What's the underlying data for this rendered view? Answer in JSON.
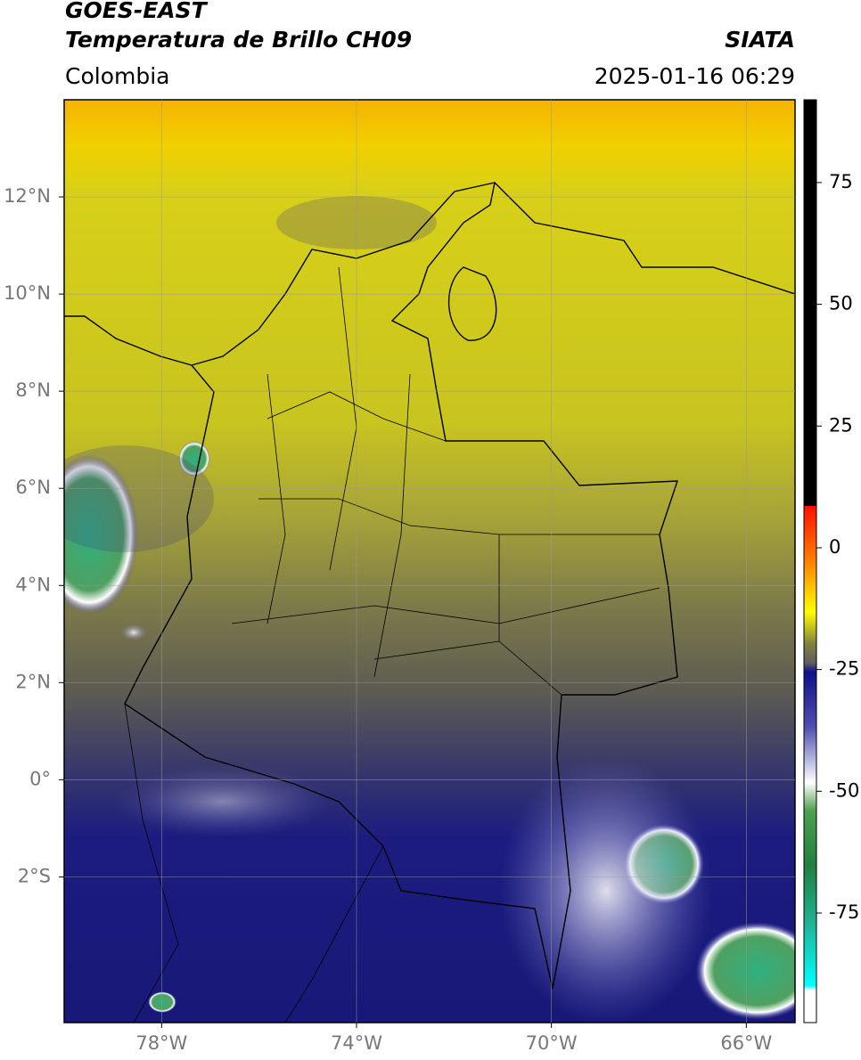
{
  "header": {
    "title": "GOES-EAST",
    "subtitle": "Temperatura de Brillo CH09",
    "source": "SIATA",
    "region": "Colombia",
    "timestamp": "2025-01-16 06:29"
  },
  "map": {
    "xlim": [
      -80,
      -65
    ],
    "ylim": [
      -5,
      14
    ],
    "grid": true,
    "xticks": [
      {
        "value": -78,
        "label": "78°W"
      },
      {
        "value": -74,
        "label": "74°W"
      },
      {
        "value": -70,
        "label": "70°W"
      },
      {
        "value": -66,
        "label": "66°W"
      }
    ],
    "yticks": [
      {
        "value": 12,
        "label": "12°N"
      },
      {
        "value": 10,
        "label": "10°N"
      },
      {
        "value": 8,
        "label": "8°N"
      },
      {
        "value": 6,
        "label": "6°N"
      },
      {
        "value": 4,
        "label": "4°N"
      },
      {
        "value": 2,
        "label": "2°N"
      },
      {
        "value": 0,
        "label": "0°"
      },
      {
        "value": -2,
        "label": "2°S"
      }
    ]
  },
  "colorbar": {
    "ylim": [
      -97.5,
      92
    ],
    "yticks": [
      75,
      50,
      25,
      0,
      -25,
      -50,
      -75
    ]
  }
}
